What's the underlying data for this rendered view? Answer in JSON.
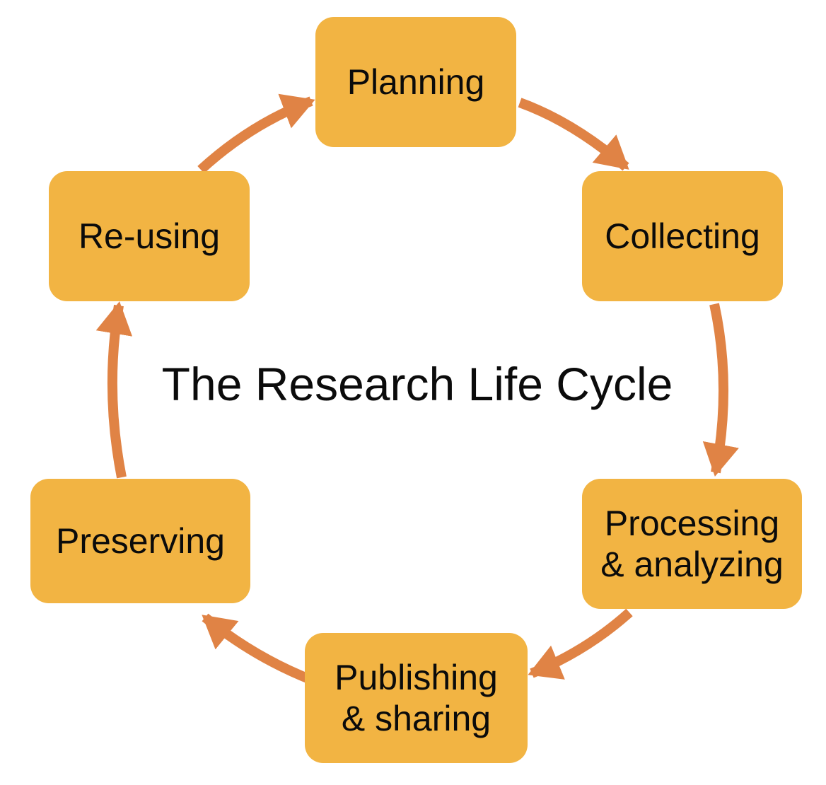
{
  "title": "The Research Life Cycle",
  "colors": {
    "box_fill": "#F2B443",
    "arrow": "#E08345",
    "text": "#0b0b0b"
  },
  "stages": {
    "planning": {
      "lines": [
        "Planning"
      ]
    },
    "collecting": {
      "lines": [
        "Collecting"
      ]
    },
    "processing": {
      "lines": [
        "Processing",
        "& analyzing"
      ]
    },
    "publishing": {
      "lines": [
        "Publishing",
        "& sharing"
      ]
    },
    "preserving": {
      "lines": [
        "Preserving"
      ]
    },
    "reusing": {
      "lines": [
        "Re-using"
      ]
    }
  },
  "cycle_order": [
    "planning",
    "collecting",
    "processing",
    "publishing",
    "preserving",
    "reusing"
  ]
}
